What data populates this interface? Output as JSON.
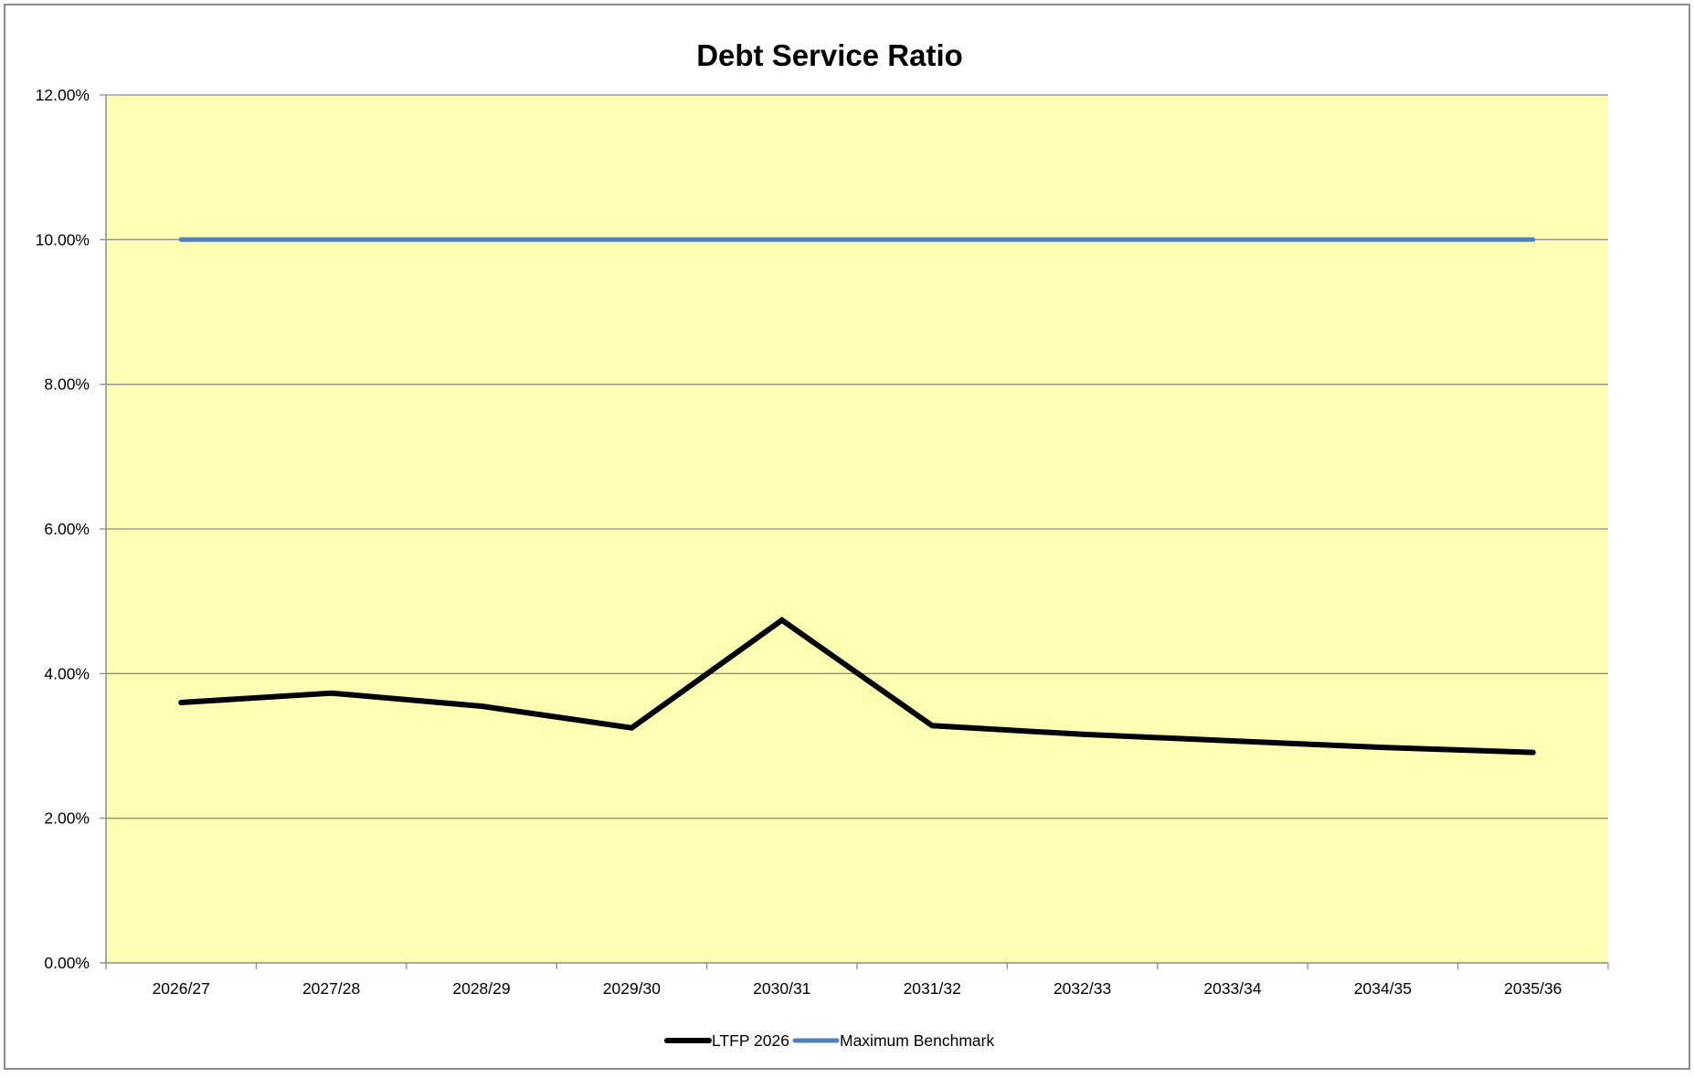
{
  "chart_data": {
    "type": "line",
    "title": "Debt Service Ratio",
    "xlabel": "",
    "ylabel": "",
    "categories": [
      "2026/27",
      "2027/28",
      "2028/29",
      "2029/30",
      "2030/31",
      "2031/32",
      "2032/33",
      "2033/34",
      "2034/35",
      "2035/36"
    ],
    "series": [
      {
        "name": "LTFP 2026",
        "values": [
          3.6,
          3.73,
          3.55,
          3.25,
          4.74,
          3.28,
          3.16,
          3.07,
          2.98,
          2.91
        ],
        "color": "#000000"
      },
      {
        "name": "Maximum Benchmark",
        "values": [
          10.0,
          10.0,
          10.0,
          10.0,
          10.0,
          10.0,
          10.0,
          10.0,
          10.0,
          10.0
        ],
        "color": "#4F81BD"
      }
    ],
    "ylim": [
      0,
      12
    ],
    "yticks": [
      "0.00%",
      "2.00%",
      "4.00%",
      "6.00%",
      "8.00%",
      "10.00%",
      "12.00%"
    ],
    "grid": true,
    "legend_position": "bottom",
    "plot_background": "#FFFFB3"
  }
}
